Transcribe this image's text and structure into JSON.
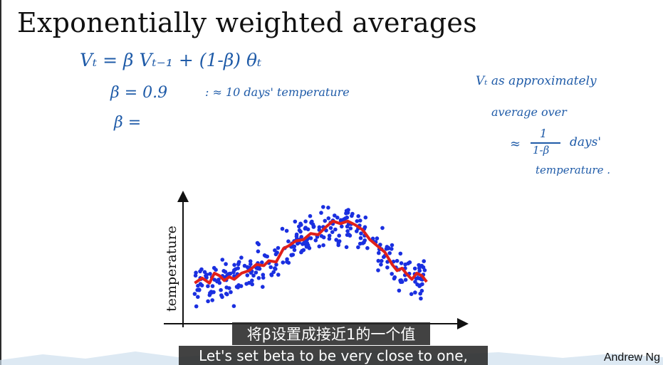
{
  "slide": {
    "title": "Exponentially weighted averages"
  },
  "notes": {
    "formula": "Vₜ = β Vₜ₋₁  +  (1-β) θₜ",
    "beta_value": "β = 0.9",
    "beta_approx": ":  ≈ 10 days' temperature",
    "beta_blank": "β =",
    "side_line1": "Vₜ  as  approximately",
    "side_line2": "average  over",
    "side_approx": "≈",
    "side_frac_num": "1",
    "side_frac_den": "1-β",
    "side_days": "days'",
    "side_line4": "temperature ."
  },
  "chart_data": {
    "type": "scatter",
    "ylabel": "temperature",
    "xlabel": "",
    "points_color": "#1a2fe0",
    "trend_color": "#e0201a",
    "trend": [
      {
        "x": 0,
        "y": 30
      },
      {
        "x": 3,
        "y": 34
      },
      {
        "x": 6,
        "y": 30
      },
      {
        "x": 8,
        "y": 38
      },
      {
        "x": 10,
        "y": 36
      },
      {
        "x": 12,
        "y": 32
      },
      {
        "x": 14,
        "y": 35
      },
      {
        "x": 16,
        "y": 33
      },
      {
        "x": 19,
        "y": 38
      },
      {
        "x": 22,
        "y": 40
      },
      {
        "x": 25,
        "y": 45
      },
      {
        "x": 28,
        "y": 44
      },
      {
        "x": 30,
        "y": 48
      },
      {
        "x": 33,
        "y": 47
      },
      {
        "x": 36,
        "y": 58
      },
      {
        "x": 38,
        "y": 60
      },
      {
        "x": 41,
        "y": 64
      },
      {
        "x": 44,
        "y": 65
      },
      {
        "x": 47,
        "y": 70
      },
      {
        "x": 50,
        "y": 69
      },
      {
        "x": 53,
        "y": 75
      },
      {
        "x": 56,
        "y": 80
      },
      {
        "x": 59,
        "y": 78
      },
      {
        "x": 62,
        "y": 80
      },
      {
        "x": 65,
        "y": 77
      },
      {
        "x": 68,
        "y": 73
      },
      {
        "x": 71,
        "y": 65
      },
      {
        "x": 74,
        "y": 60
      },
      {
        "x": 77,
        "y": 55
      },
      {
        "x": 80,
        "y": 45
      },
      {
        "x": 82,
        "y": 40
      },
      {
        "x": 84,
        "y": 42
      },
      {
        "x": 86,
        "y": 37
      },
      {
        "x": 88,
        "y": 33
      },
      {
        "x": 90,
        "y": 38
      },
      {
        "x": 92,
        "y": 36
      },
      {
        "x": 94,
        "y": 31
      }
    ],
    "xlim": [
      -3,
      100
    ],
    "ylim": [
      0,
      100
    ]
  },
  "subtitles": {
    "zh": "将β设置成接近1的一个值",
    "en": "Let's set beta to be very close to one,"
  },
  "credit": "Andrew Ng"
}
